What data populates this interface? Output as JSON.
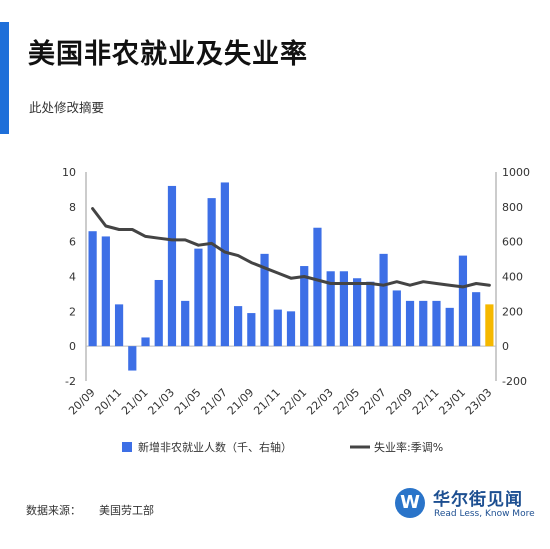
{
  "header": {
    "title": "美国非农就业及失业率",
    "subtitle": "此处修改摘要"
  },
  "footer": {
    "source_label": "数据来源：",
    "source_value": "美国劳工部"
  },
  "brand": {
    "logo_glyph": "W",
    "name_cn": "华尔街见闻",
    "tagline": "Read Less, Know More"
  },
  "colors": {
    "accent": "#1e6fd9",
    "bar": "#3d6fe6",
    "bar_highlight": "#f5b800",
    "line": "#444444"
  },
  "chart_data": {
    "type": "bar",
    "categories": [
      "20/09",
      "20/10",
      "20/11",
      "20/12",
      "21/01",
      "21/02",
      "21/03",
      "21/04",
      "21/05",
      "21/06",
      "21/07",
      "21/08",
      "21/09",
      "21/10",
      "21/11",
      "21/12",
      "22/01",
      "22/02",
      "22/03",
      "22/04",
      "22/05",
      "22/06",
      "22/07",
      "22/08",
      "22/09",
      "22/10",
      "22/11",
      "22/12",
      "23/01",
      "23/02",
      "23/03"
    ],
    "x_tick_labels": [
      "20/09",
      "20/11",
      "21/01",
      "21/03",
      "21/05",
      "21/07",
      "21/09",
      "21/11",
      "22/01",
      "22/03",
      "22/05",
      "22/07",
      "22/09",
      "22/11",
      "23/01",
      "23/03"
    ],
    "series": [
      {
        "name": "新增非农就业人数（千、右轴）",
        "type": "bar",
        "axis": "left",
        "values": [
          6.6,
          6.3,
          2.4,
          -1.4,
          0.5,
          3.8,
          9.2,
          2.6,
          5.6,
          8.5,
          9.4,
          2.3,
          1.9,
          5.3,
          2.1,
          2.0,
          4.6,
          6.8,
          4.3,
          4.3,
          3.9,
          3.7,
          5.3,
          3.2,
          2.6,
          2.6,
          2.6,
          2.2,
          5.2,
          3.1,
          2.4
        ],
        "highlight_last": true
      },
      {
        "name": "失业率:季调%",
        "type": "line",
        "axis": "right",
        "values": [
          790,
          690,
          670,
          670,
          630,
          620,
          610,
          610,
          580,
          590,
          540,
          520,
          480,
          450,
          420,
          390,
          400,
          380,
          360,
          360,
          360,
          360,
          350,
          370,
          350,
          370,
          360,
          350,
          340,
          360,
          350
        ]
      }
    ],
    "y_left": {
      "ylim": [
        -2,
        10
      ],
      "ticks": [
        -2,
        0,
        2,
        4,
        6,
        8,
        10
      ]
    },
    "y_right": {
      "ylim": [
        -200,
        1000
      ],
      "ticks": [
        -200,
        0,
        200,
        400,
        600,
        800,
        1000
      ]
    },
    "grid": false,
    "legend_position": "bottom"
  }
}
